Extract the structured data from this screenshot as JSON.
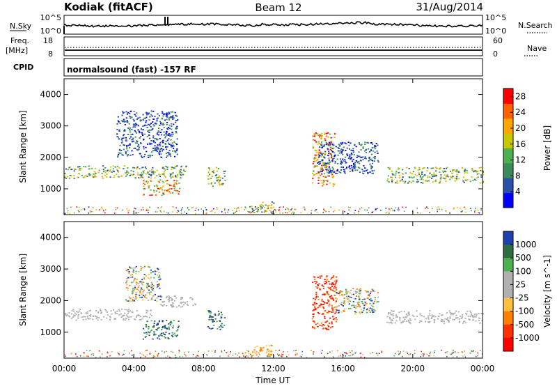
{
  "header": {
    "radar": "Kodiak (fitACF)",
    "beam": "Beam 12",
    "date": "31/Aug/2014"
  },
  "strips": {
    "nsky": {
      "label": "N.Sky",
      "ticks": [
        "10^5",
        "10^0"
      ],
      "right_ticks": [
        "10^5",
        "10^0"
      ],
      "right_label": "N.Search",
      "right_style": "dotted"
    },
    "freq": {
      "label_line1": "Freq.",
      "label_line2": "[MHz]",
      "ticks": [
        "18",
        "8"
      ],
      "right_ticks": [
        "60",
        "0"
      ],
      "right_label": "Nave",
      "right_style": "dotted"
    },
    "cpid": {
      "label": "CPID",
      "text": "normalsound (fast) -157 RF"
    }
  },
  "colors": {
    "power_scale": [
      "#0000ff",
      "#2a4fa8",
      "#3b8a5c",
      "#4caf50",
      "#c8c800",
      "#ffa500",
      "#ff6000",
      "#ff0000"
    ],
    "velocity_scale": [
      "#2040b0",
      "#2e6c40",
      "#4caf50",
      "#b0b0b0",
      "#b0b0b0",
      "#ffc040",
      "#ff8000",
      "#ff3000",
      "#ff0000"
    ]
  },
  "chart_data": [
    {
      "type": "heatmap",
      "title": "",
      "ylabel": "Slant Range [km]",
      "ylim": [
        180,
        4500
      ],
      "yticks": [
        1000,
        2000,
        3000,
        4000
      ],
      "xlim_hours": [
        0,
        24
      ],
      "colorbar": {
        "label": "Power [dB]",
        "ticks": [
          "4",
          "8",
          "12",
          "16",
          "20",
          "24",
          "28"
        ],
        "range": [
          0,
          30
        ]
      },
      "echo_regions": [
        {
          "t_start": 0.0,
          "t_end": 7.0,
          "r_start": 1350,
          "r_end": 1750,
          "level": "medium"
        },
        {
          "t_start": 4.5,
          "t_end": 6.6,
          "r_start": 800,
          "r_end": 1300,
          "level": "high"
        },
        {
          "t_start": 3.0,
          "t_end": 6.5,
          "r_start": 2000,
          "r_end": 3500,
          "level": "low"
        },
        {
          "t_start": 8.2,
          "t_end": 9.2,
          "r_start": 1100,
          "r_end": 1700,
          "level": "medium"
        },
        {
          "t_start": 10.5,
          "t_end": 12.0,
          "r_start": 250,
          "r_end": 600,
          "level": "medium"
        },
        {
          "t_start": 14.2,
          "t_end": 15.5,
          "r_start": 1100,
          "r_end": 2800,
          "level": "high"
        },
        {
          "t_start": 14.5,
          "t_end": 18.0,
          "r_start": 1500,
          "r_end": 2500,
          "level": "low"
        },
        {
          "t_start": 18.5,
          "t_end": 24.0,
          "r_start": 1200,
          "r_end": 1700,
          "level": "medium"
        }
      ]
    },
    {
      "type": "heatmap",
      "title": "",
      "ylabel": "Slant Range [km]",
      "ylim": [
        180,
        4500
      ],
      "yticks": [
        1000,
        2000,
        3000,
        4000
      ],
      "xlim_hours": [
        0,
        24
      ],
      "xlabel": "Time UT",
      "xticks": [
        "00:00",
        "04:00",
        "08:00",
        "12:00",
        "16:00",
        "20:00",
        "00:00"
      ],
      "colorbar": {
        "label": "Velocity [m s^-1]",
        "ticks": [
          "1000",
          "500",
          "100",
          "25",
          "-25",
          "-100",
          "-500",
          "-1000"
        ],
        "range": [
          -1000,
          1000
        ]
      },
      "echo_regions": [
        {
          "t_start": 0.0,
          "t_end": 5.0,
          "r_start": 1400,
          "r_end": 1750,
          "level": "ground"
        },
        {
          "t_start": 5.5,
          "t_end": 7.5,
          "r_start": 1800,
          "r_end": 2200,
          "level": "ground"
        },
        {
          "t_start": 4.5,
          "t_end": 6.6,
          "r_start": 800,
          "r_end": 1400,
          "level": "positive"
        },
        {
          "t_start": 8.2,
          "t_end": 9.2,
          "r_start": 1100,
          "r_end": 1700,
          "level": "positive"
        },
        {
          "t_start": 3.5,
          "t_end": 5.5,
          "r_start": 2000,
          "r_end": 3100,
          "level": "mixed"
        },
        {
          "t_start": 10.5,
          "t_end": 12.0,
          "r_start": 250,
          "r_end": 600,
          "level": "negative"
        },
        {
          "t_start": 14.2,
          "t_end": 15.6,
          "r_start": 1100,
          "r_end": 2800,
          "level": "strong-negative"
        },
        {
          "t_start": 15.5,
          "t_end": 18.0,
          "r_start": 1600,
          "r_end": 2400,
          "level": "mixed"
        },
        {
          "t_start": 18.5,
          "t_end": 24.0,
          "r_start": 1300,
          "r_end": 1700,
          "level": "ground"
        }
      ]
    }
  ]
}
